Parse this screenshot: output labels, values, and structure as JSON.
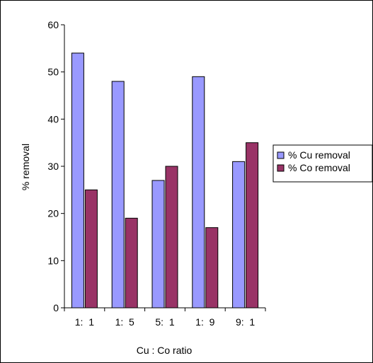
{
  "chart_data": {
    "type": "bar",
    "title": "",
    "xlabel": "Cu : Co ratio",
    "ylabel": "% removal",
    "categories": [
      "1:  1",
      "1:  5",
      "5:  1",
      "1:  9",
      "9:  1"
    ],
    "series": [
      {
        "name": "% Cu removal",
        "values": [
          54,
          48,
          27,
          49,
          31
        ],
        "color": "#9999ff"
      },
      {
        "name": "% Co removal",
        "values": [
          25,
          19,
          30,
          17,
          35
        ],
        "color": "#993366"
      }
    ],
    "ylim": [
      0,
      60
    ],
    "yticks": [
      0,
      10,
      20,
      30,
      40,
      50,
      60
    ],
    "grid": false,
    "legend_position": "right"
  }
}
